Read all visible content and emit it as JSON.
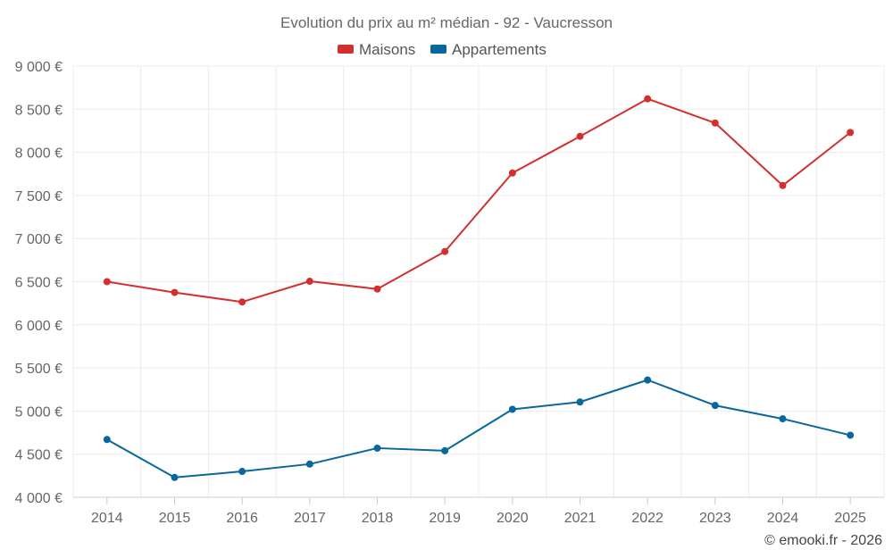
{
  "chart_data": {
    "type": "line",
    "title": "Evolution du prix au m² médian - 92 - Vaucresson",
    "categories": [
      "2014",
      "2015",
      "2016",
      "2017",
      "2018",
      "2019",
      "2020",
      "2021",
      "2022",
      "2023",
      "2024",
      "2025"
    ],
    "series": [
      {
        "name": "Maisons",
        "color": "#d32f2f",
        "values": [
          6500,
          6375,
          6265,
          6505,
          6415,
          6850,
          7760,
          8185,
          8620,
          8340,
          7615,
          8230
        ]
      },
      {
        "name": "Appartements",
        "color": "#08679c",
        "values": [
          4670,
          4230,
          4300,
          4385,
          4570,
          4540,
          5020,
          5105,
          5360,
          5065,
          4910,
          4720
        ]
      }
    ],
    "ylim": [
      4000,
      9000
    ],
    "yticks": [
      {
        "value": 4000,
        "label": "4 000 €"
      },
      {
        "value": 4500,
        "label": "4 500 €"
      },
      {
        "value": 5000,
        "label": "5 000 €"
      },
      {
        "value": 5500,
        "label": "5 500 €"
      },
      {
        "value": 6000,
        "label": "6 000 €"
      },
      {
        "value": 6500,
        "label": "6 500 €"
      },
      {
        "value": 7000,
        "label": "7 000 €"
      },
      {
        "value": 7500,
        "label": "7 500 €"
      },
      {
        "value": 8000,
        "label": "8 000 €"
      },
      {
        "value": 8500,
        "label": "8 500 €"
      },
      {
        "value": 9000,
        "label": "9 000 €"
      }
    ],
    "xlabel": "",
    "ylabel": "",
    "grid": true,
    "legend_position": "top-center"
  },
  "credit": "© emooki.fr - 2026"
}
